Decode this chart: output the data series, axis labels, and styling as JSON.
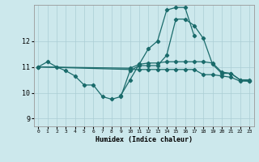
{
  "xlabel": "Humidex (Indice chaleur)",
  "xlim": [
    -0.5,
    23.5
  ],
  "ylim": [
    8.7,
    13.4
  ],
  "bg_color": "#cce8ec",
  "grid_color": "#aacdd4",
  "line_color": "#1a6b6b",
  "x": [
    0,
    1,
    2,
    3,
    4,
    5,
    6,
    7,
    8,
    9,
    10,
    11,
    12,
    13,
    14,
    15,
    16,
    17,
    18,
    19,
    20,
    21,
    22,
    23
  ],
  "line1": [
    11.0,
    11.2,
    11.0,
    10.85,
    10.65,
    10.3,
    10.3,
    9.85,
    9.75,
    9.85,
    10.85,
    11.05,
    11.05,
    11.05,
    11.45,
    12.85,
    12.85,
    12.6,
    12.1,
    11.1,
    10.75,
    10.75,
    10.5,
    10.5
  ],
  "line2": [
    null,
    null,
    null,
    null,
    null,
    null,
    null,
    null,
    null,
    9.9,
    10.5,
    11.1,
    11.7,
    12.0,
    13.2,
    13.3,
    13.3,
    12.2,
    null,
    null,
    null,
    null,
    null,
    null
  ],
  "line3": [
    11.0,
    null,
    null,
    null,
    null,
    null,
    null,
    null,
    null,
    null,
    10.95,
    11.1,
    11.15,
    11.15,
    11.2,
    11.2,
    11.2,
    11.2,
    11.2,
    11.15,
    10.8,
    10.75,
    10.5,
    10.45
  ],
  "line4": [
    11.0,
    null,
    null,
    null,
    null,
    null,
    null,
    null,
    null,
    null,
    10.9,
    10.9,
    10.9,
    10.9,
    10.9,
    10.9,
    10.9,
    10.9,
    10.7,
    10.7,
    10.65,
    10.6,
    10.45,
    10.45
  ],
  "yticks": [
    9,
    10,
    11,
    12
  ],
  "ytick_labels": [
    "9",
    "10",
    "11",
    "12"
  ],
  "xtick_labels": [
    "0",
    "1",
    "2",
    "3",
    "4",
    "5",
    "6",
    "7",
    "8",
    "9",
    "10",
    "11",
    "12",
    "13",
    "14",
    "15",
    "16",
    "17",
    "18",
    "19",
    "20",
    "21",
    "22",
    "23"
  ]
}
